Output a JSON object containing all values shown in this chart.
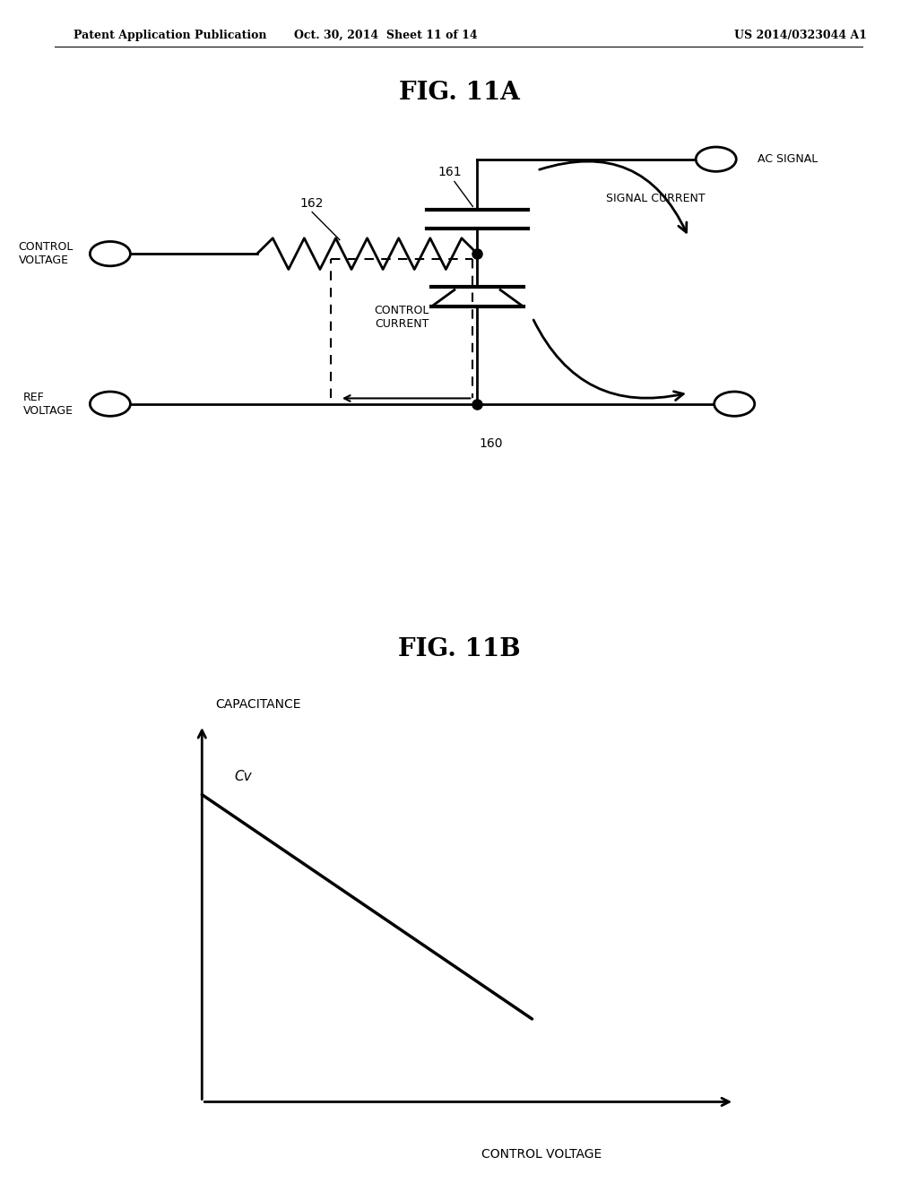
{
  "background_color": "#ffffff",
  "header_left": "Patent Application Publication",
  "header_center": "Oct. 30, 2014  Sheet 11 of 14",
  "header_right": "US 2014/0323044 A1",
  "fig11a_title": "FIG. 11A",
  "fig11b_title": "FIG. 11B",
  "label_161": "161",
  "label_162": "162",
  "label_160": "160",
  "label_ac_signal": "AC SIGNAL",
  "label_signal_current": "SIGNAL CURRENT",
  "label_control_voltage": "CONTROL\nVOLTAGE",
  "label_control_current": "CONTROL\nCURRENT",
  "label_ref_voltage": "REF\nVOLTAGE",
  "label_capacitance": "CAPACITANCE",
  "label_cv": "Cv",
  "label_control_voltage_x": "CONTROL VOLTAGE",
  "line_color": "#000000",
  "text_color": "#000000"
}
